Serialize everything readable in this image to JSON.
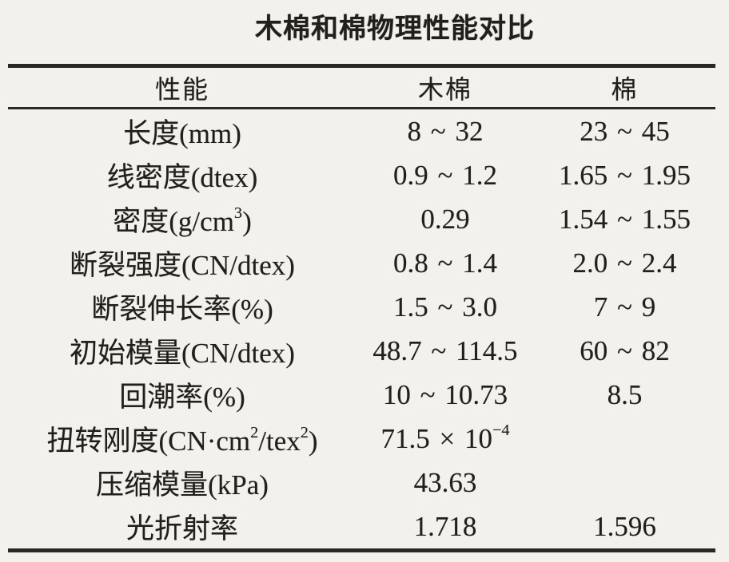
{
  "page": {
    "background_color": "#f3f1ee",
    "text_color": "#221f1b",
    "rule_color": "#2b2823"
  },
  "title": "木棉和棉物理性能对比",
  "table": {
    "headers": [
      "性能",
      "木棉",
      "棉"
    ],
    "rows": [
      {
        "property": "长度(mm)",
        "kapok": "8 ~ 32",
        "cotton": "23 ~ 45"
      },
      {
        "property": "线密度(dtex)",
        "kapok": "0.9 ~ 1.2",
        "cotton": "1.65 ~ 1.95"
      },
      {
        "property": "密度(g/cm^{3})",
        "kapok": "0.29",
        "cotton": "1.54 ~ 1.55"
      },
      {
        "property": "断裂强度(CN/dtex)",
        "kapok": "0.8 ~ 1.4",
        "cotton": "2.0 ~ 2.4"
      },
      {
        "property": "断裂伸长率(%)",
        "kapok": "1.5 ~ 3.0",
        "cotton": "7 ~ 9"
      },
      {
        "property": "初始模量(CN/dtex)",
        "kapok": "48.7 ~ 114.5",
        "cotton": "60 ~ 82"
      },
      {
        "property": "回潮率(%)",
        "kapok": "10 ~ 10.73",
        "cotton": "8.5"
      },
      {
        "property": "扭转刚度(CN·cm^{2}/tex^{2})",
        "kapok": "71.5 × 10^{−4}",
        "cotton": ""
      },
      {
        "property": "压缩模量(kPa)",
        "kapok": "43.63",
        "cotton": ""
      },
      {
        "property": "光折射率",
        "kapok": "1.718",
        "cotton": "1.596"
      }
    ]
  },
  "chart_data": {
    "type": "table",
    "title": "木棉和棉物理性能对比",
    "columns": [
      "性能",
      "木棉",
      "棉"
    ],
    "rows": [
      [
        "长度(mm)",
        "8~32",
        "23~45"
      ],
      [
        "线密度(dtex)",
        "0.9~1.2",
        "1.65~1.95"
      ],
      [
        "密度(g/cm³)",
        "0.29",
        "1.54~1.55"
      ],
      [
        "断裂强度(CN/dtex)",
        "0.8~1.4",
        "2.0~2.4"
      ],
      [
        "断裂伸长率(%)",
        "1.5~3.0",
        "7~9"
      ],
      [
        "初始模量(CN/dtex)",
        "48.7~114.5",
        "60~82"
      ],
      [
        "回潮率(%)",
        "10~10.73",
        "8.5"
      ],
      [
        "扭转刚度(CN·cm²/tex²)",
        "71.5×10⁻⁴",
        ""
      ],
      [
        "压缩模量(kPa)",
        "43.63",
        ""
      ],
      [
        "光折射率",
        "1.718",
        "1.596"
      ]
    ]
  }
}
